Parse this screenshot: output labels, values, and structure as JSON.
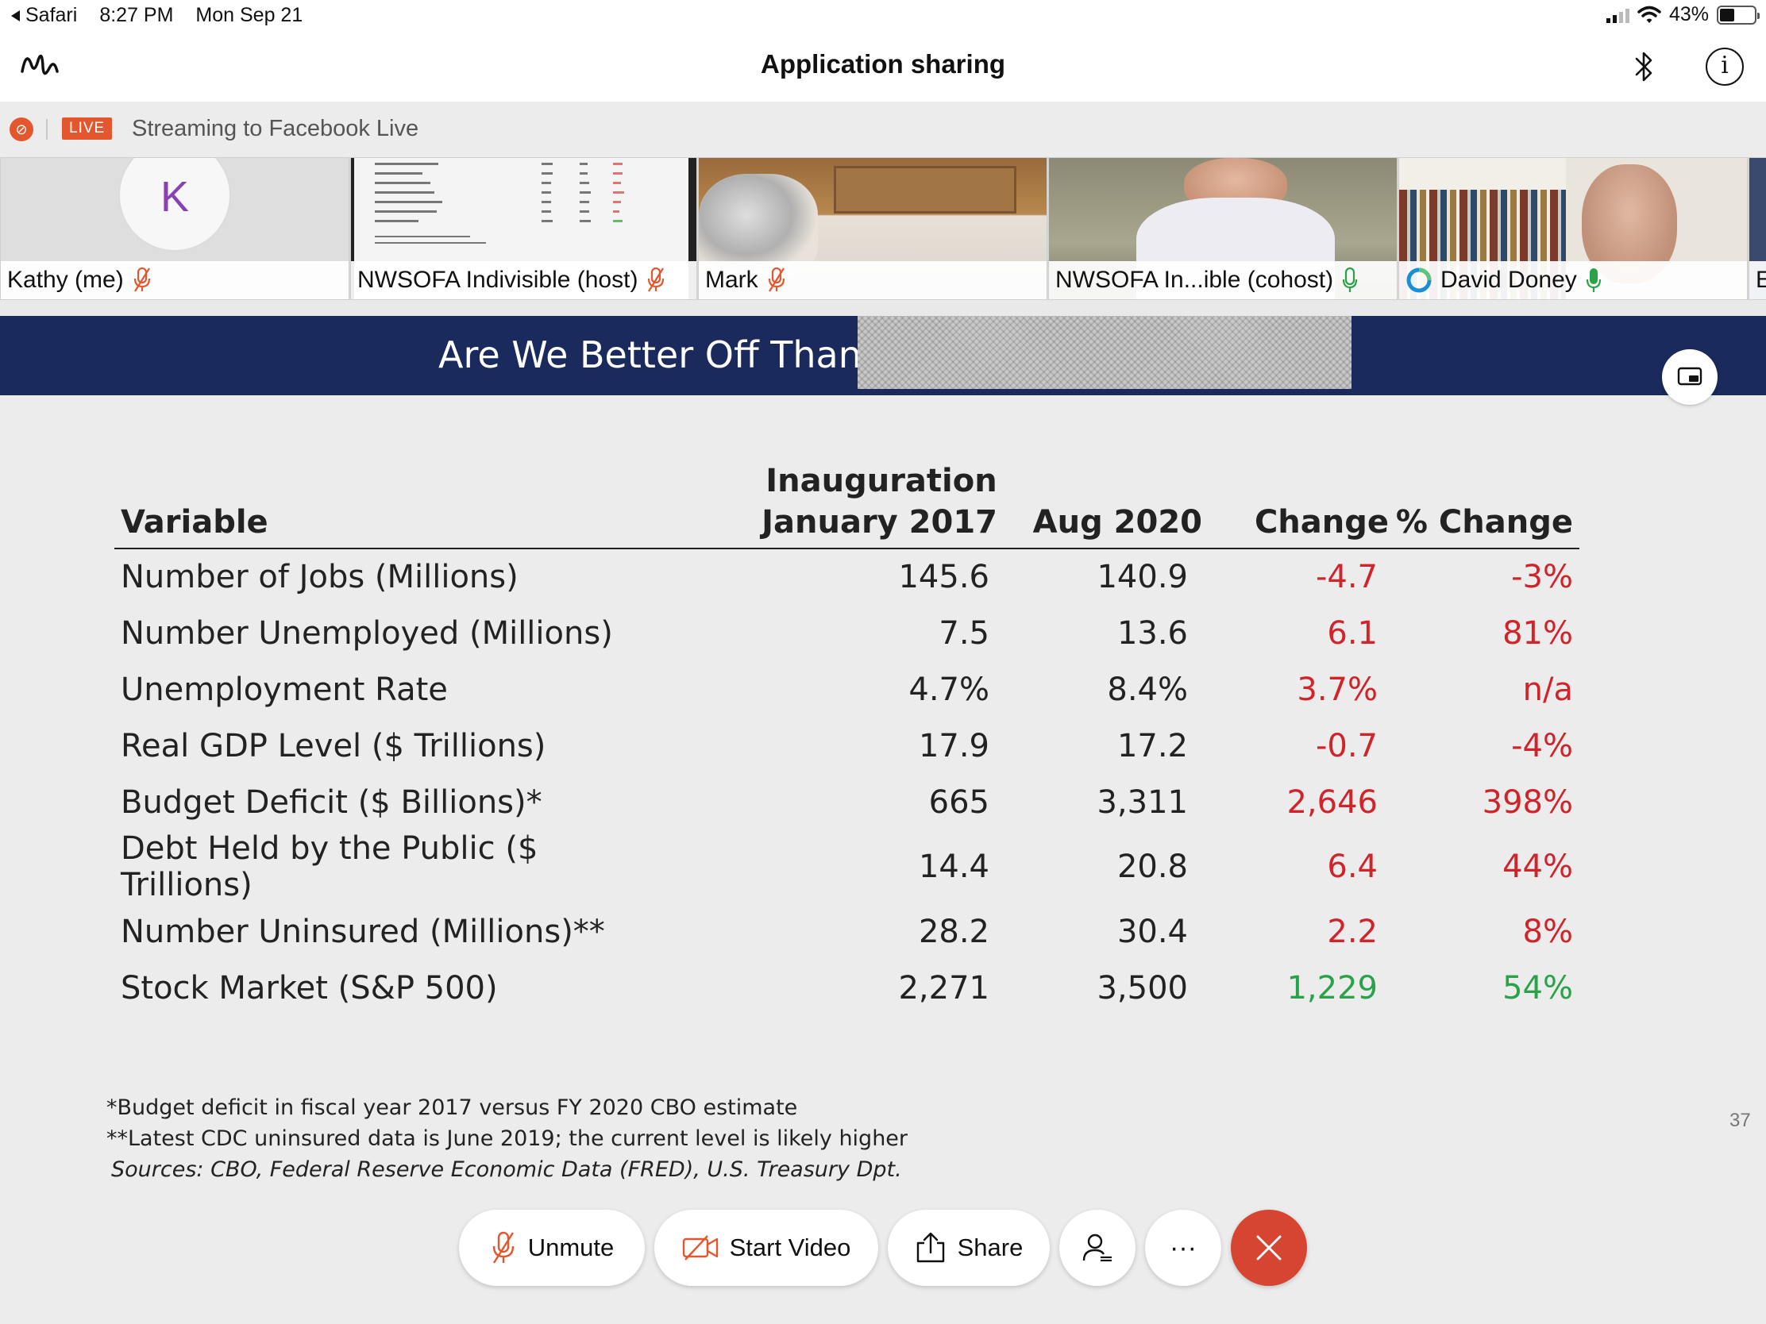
{
  "status_bar": {
    "back_app": "Safari",
    "time": "8:27 PM",
    "date": "Mon Sep 21",
    "battery_text": "43%",
    "battery_level": 0.43
  },
  "header": {
    "title": "Application sharing",
    "icons": [
      "webex-logo-icon",
      "bluetooth-icon",
      "info-icon"
    ]
  },
  "stream": {
    "live_badge": "LIVE",
    "text": "Streaming to Facebook Live"
  },
  "participants": [
    {
      "name": "Kathy (me)",
      "avatar_letter": "K",
      "mic": "muted"
    },
    {
      "name": "NWSOFA Indivisible (host)",
      "mic": "muted"
    },
    {
      "name": "Mark",
      "mic": "muted"
    },
    {
      "name": "NWSOFA In...ible (cohost)",
      "mic": "on"
    },
    {
      "name": "David Doney",
      "mic": "on"
    },
    {
      "name": "E"
    }
  ],
  "slide": {
    "title": "Are We Better Off Than",
    "headers": {
      "variable": "Variable",
      "inaug_line1": "Inauguration",
      "inaug_line2": "January 2017",
      "aug": "Aug 2020",
      "change": "Change",
      "pct_change": "% Change"
    },
    "rows": [
      {
        "variable": "Number of Jobs (Millions)",
        "inaug": "145.6",
        "aug": "140.9",
        "change": "-4.7",
        "pct": "-3%",
        "trend": "neg"
      },
      {
        "variable": "Number Unemployed (Millions)",
        "inaug": "7.5",
        "aug": "13.6",
        "change": "6.1",
        "pct": "81%",
        "trend": "neg"
      },
      {
        "variable": "Unemployment Rate",
        "inaug": "4.7%",
        "aug": "8.4%",
        "change": "3.7%",
        "pct": "n/a",
        "trend": "neg"
      },
      {
        "variable": "Real GDP Level ($ Trillions)",
        "inaug": "17.9",
        "aug": "17.2",
        "change": "-0.7",
        "pct": "-4%",
        "trend": "neg"
      },
      {
        "variable": "Budget Deficit ($ Billions)*",
        "inaug": "665",
        "aug": "3,311",
        "change": "2,646",
        "pct": "398%",
        "trend": "neg"
      },
      {
        "variable": "Debt Held by the Public ($ Trillions)",
        "inaug": "14.4",
        "aug": "20.8",
        "change": "6.4",
        "pct": "44%",
        "trend": "neg"
      },
      {
        "variable": "Number Uninsured (Millions)**",
        "inaug": "28.2",
        "aug": "30.4",
        "change": "2.2",
        "pct": "8%",
        "trend": "neg"
      },
      {
        "variable": "Stock Market (S&P 500)",
        "inaug": "2,271",
        "aug": "3,500",
        "change": "1,229",
        "pct": "54%",
        "trend": "pos"
      }
    ],
    "footnote1": "*Budget deficit in fiscal year 2017 versus FY 2020 CBO estimate",
    "footnote2": "**Latest CDC uninsured data is June 2019; the current level is likely higher",
    "sources": "Sources:  CBO, Federal Reserve Economic Data (FRED), U.S. Treasury Dpt.",
    "slide_number": "37"
  },
  "controls": {
    "unmute_label": "Unmute",
    "start_video_label": "Start Video",
    "share_label": "Share",
    "more_label": "···"
  },
  "colors": {
    "banner": "#1b2a5c",
    "negative": "#d0242b",
    "positive": "#2aa24a",
    "end_call": "#d64532",
    "live": "#e4572e"
  }
}
